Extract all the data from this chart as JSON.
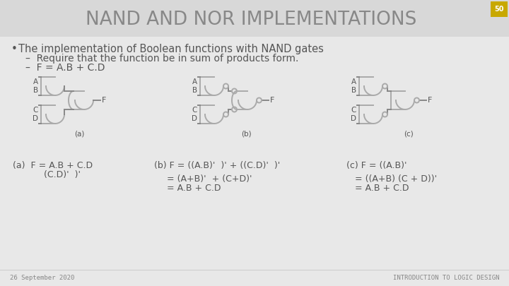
{
  "title": "NAND AND NOR IMPLEMENTATIONS",
  "title_color": "#888888",
  "bg_color": "#e8e8e8",
  "title_bg_color": "#d8d8d8",
  "slide_number": "50",
  "slide_number_bg": "#c8a800",
  "bullet": "The implementation of Boolean functions with NAND gates",
  "sub1": "Require that the function be in sum of products form.",
  "sub2": "F = A.B + C.D",
  "footer_left": "26 September 2020",
  "footer_right": "INTRODUCTION TO LOGIC DESIGN",
  "gate_color": "#aaaaaa",
  "wire_color": "#888888",
  "text_color": "#555555"
}
